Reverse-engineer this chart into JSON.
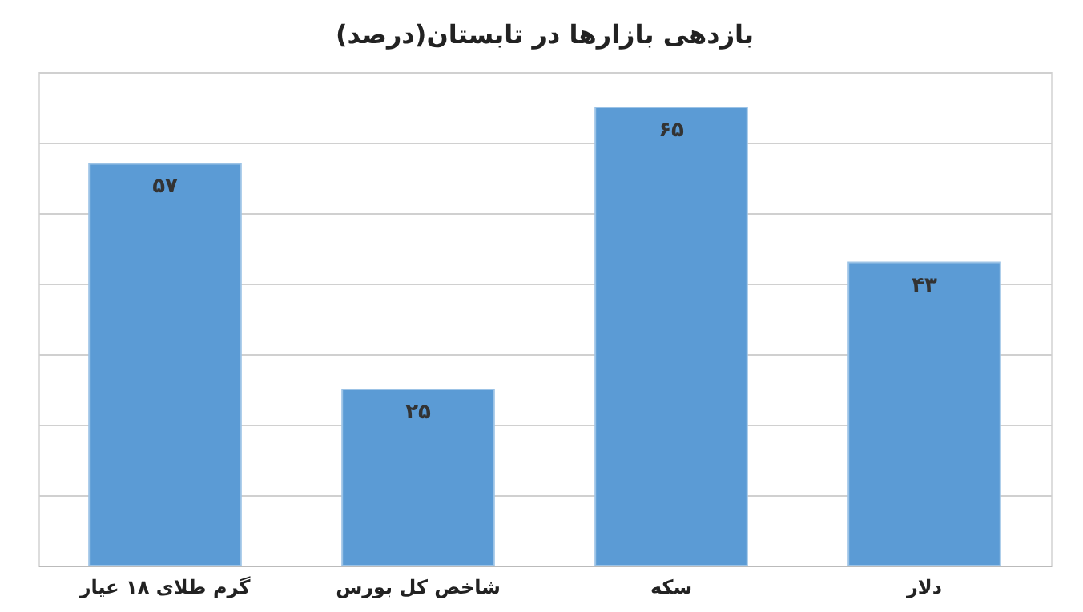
{
  "chart_data": {
    "type": "bar",
    "title": "بازدهی بازارها در تابستان(درصد)",
    "categories": [
      "گرم طلای ۱۸ عیار",
      "شاخص کل بورس",
      "سکه",
      "دلار"
    ],
    "values": [
      57,
      25,
      65,
      43
    ],
    "value_labels": [
      "۵۷",
      "۲۵",
      "۶۵",
      "۴۳"
    ],
    "color": "#5b9bd5",
    "ylim": [
      0,
      70
    ],
    "yticks": [
      {
        "value": 0,
        "label": null
      },
      {
        "value": 10,
        "label": null
      },
      {
        "value": 20,
        "label": null
      },
      {
        "value": 30,
        "label": null
      },
      {
        "value": 40,
        "label": null
      },
      {
        "value": 50,
        "label": null
      },
      {
        "value": 60,
        "label": null
      },
      {
        "value": 70,
        "label": null
      }
    ],
    "tick_labels": "x",
    "grid": "y"
  }
}
